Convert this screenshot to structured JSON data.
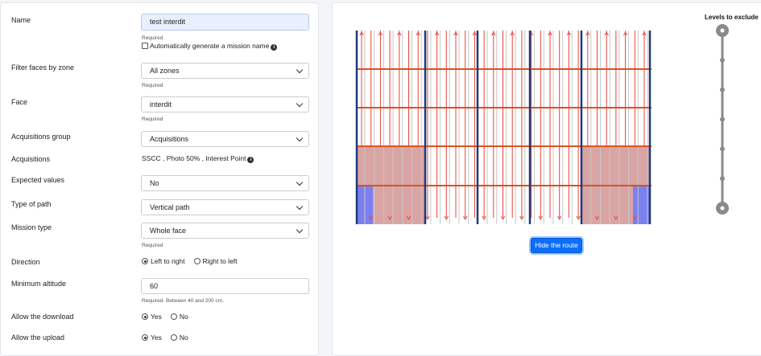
{
  "form": {
    "name": {
      "label": "Name",
      "value": "test interdit",
      "help": "Required.",
      "auto_name_label": "Automatically generate a mission name",
      "auto_name_checked": false
    },
    "filter_zone": {
      "label": "Filter faces by zone",
      "value": "All zones",
      "help": "Required"
    },
    "face": {
      "label": "Face",
      "value": "interdit",
      "help": "Required"
    },
    "acq_group": {
      "label": "Acquisitions group",
      "value": "Acquisitions"
    },
    "acquisitions": {
      "label": "Acquisitions",
      "value": "SSCC , Photo 50% , Interest Point"
    },
    "expected_values": {
      "label": "Expected values",
      "value": "No"
    },
    "path_type": {
      "label": "Type of path",
      "value": "Vertical path"
    },
    "mission_type": {
      "label": "Mission type",
      "value": "Whole face",
      "help": "Required"
    },
    "direction": {
      "label": "Direction",
      "options": [
        "Left to right",
        "Right to left"
      ],
      "selected": "Left to right"
    },
    "min_altitude": {
      "label": "Minimum altitude",
      "value": "60",
      "help": "Required. Between 40 and 200 cm."
    },
    "allow_download": {
      "label": "Allow the download",
      "options": [
        "Yes",
        "No"
      ],
      "selected": "Yes"
    },
    "allow_upload": {
      "label": "Allow the upload",
      "options": [
        "Yes",
        "No"
      ],
      "selected": "Yes"
    }
  },
  "preview": {
    "hide_route_label": "Hide the route",
    "levels_title": "Levels to exclude",
    "level_count": 7,
    "colors": {
      "route": "#e8443a",
      "level_line": "#d9531e",
      "upright": "#1f3a7a",
      "excluded_zone": "#d9a4a4",
      "blocked_zone": "#7b7ff0",
      "button": "#0d6efd"
    }
  }
}
